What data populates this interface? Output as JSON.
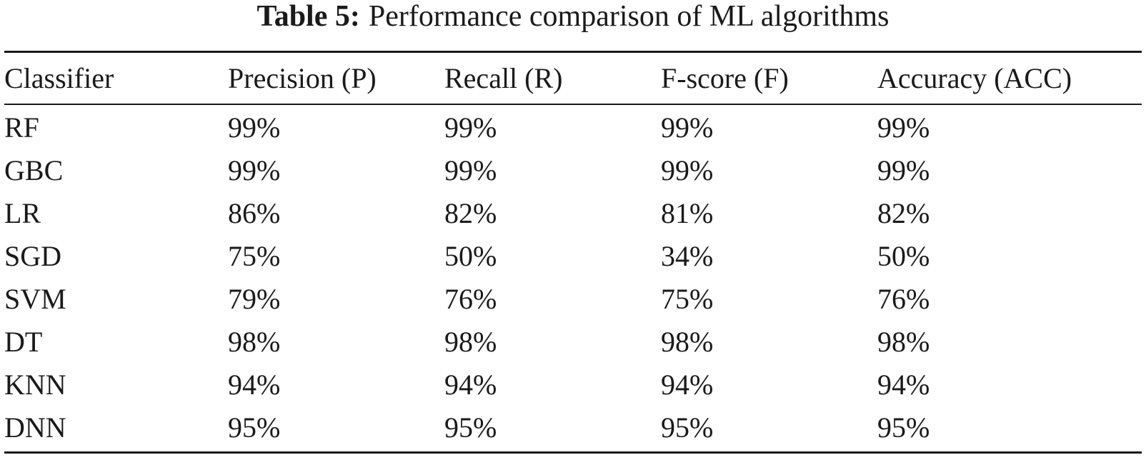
{
  "caption": {
    "label": "Table 5:",
    "text": "Performance comparison of ML algorithms"
  },
  "table": {
    "headers": [
      "Classifier",
      "Precision (P)",
      "Recall (R)",
      "F-score (F)",
      "Accuracy (ACC)"
    ],
    "rows": [
      [
        "RF",
        "99%",
        "99%",
        "99%",
        "99%"
      ],
      [
        "GBC",
        "99%",
        "99%",
        "99%",
        "99%"
      ],
      [
        "LR",
        "86%",
        "82%",
        "81%",
        "82%"
      ],
      [
        "SGD",
        "75%",
        "50%",
        "34%",
        "50%"
      ],
      [
        "SVM",
        "79%",
        "76%",
        "75%",
        "76%"
      ],
      [
        "DT",
        "98%",
        "98%",
        "98%",
        "98%"
      ],
      [
        "KNN",
        "94%",
        "94%",
        "94%",
        "94%"
      ],
      [
        "DNN",
        "95%",
        "95%",
        "95%",
        "95%"
      ]
    ]
  }
}
